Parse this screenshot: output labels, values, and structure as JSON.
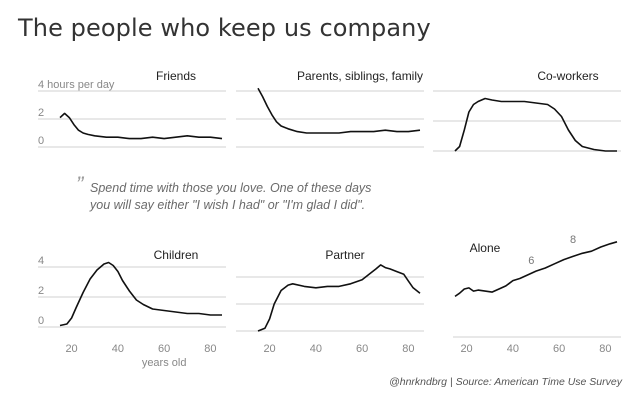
{
  "title": "The people who keep us company",
  "quote": {
    "mark": "”",
    "line1": "Spend time with those you love. One of these days",
    "line2": "you will say either \"I wish I had\" or \"I'm glad I did\"."
  },
  "credit": "@hnrkndbrg | Source: American Time Use Survey",
  "chart_data": [
    {
      "type": "line",
      "title": "Friends",
      "xlim": [
        15,
        85
      ],
      "ylim": [
        0,
        4
      ],
      "yticks": [
        "0",
        "2",
        "4 hours per day"
      ],
      "x": [
        15,
        17,
        19,
        21,
        23,
        25,
        27,
        30,
        35,
        40,
        45,
        50,
        55,
        60,
        65,
        70,
        75,
        80,
        85
      ],
      "values": [
        2.1,
        2.4,
        2.1,
        1.6,
        1.2,
        1.0,
        0.9,
        0.8,
        0.7,
        0.7,
        0.6,
        0.6,
        0.7,
        0.6,
        0.7,
        0.8,
        0.7,
        0.7,
        0.6
      ]
    },
    {
      "type": "line",
      "title": "Parents, siblings, family",
      "xlim": [
        15,
        85
      ],
      "ylim": [
        0,
        4
      ],
      "x": [
        15,
        17,
        19,
        21,
        23,
        25,
        28,
        32,
        36,
        40,
        45,
        50,
        55,
        60,
        65,
        70,
        75,
        80,
        85
      ],
      "values": [
        4.2,
        3.6,
        2.9,
        2.3,
        1.8,
        1.5,
        1.3,
        1.1,
        1.0,
        1.0,
        1.0,
        1.0,
        1.1,
        1.1,
        1.1,
        1.2,
        1.1,
        1.1,
        1.2
      ]
    },
    {
      "type": "line",
      "title": "Co-workers",
      "xlim": [
        15,
        85
      ],
      "ylim": [
        0,
        4
      ],
      "x": [
        15,
        17,
        19,
        21,
        23,
        25,
        28,
        31,
        35,
        40,
        45,
        50,
        55,
        58,
        61,
        64,
        67,
        70,
        75,
        80,
        85
      ],
      "values": [
        0.0,
        0.3,
        1.4,
        2.6,
        3.1,
        3.3,
        3.5,
        3.4,
        3.3,
        3.3,
        3.3,
        3.2,
        3.1,
        2.8,
        2.3,
        1.4,
        0.7,
        0.3,
        0.1,
        0.0,
        0.0
      ]
    },
    {
      "type": "line",
      "title": "Children",
      "xlim": [
        15,
        85
      ],
      "ylim": [
        0,
        4.5
      ],
      "yticks": [
        "0",
        "2",
        "4"
      ],
      "xticks": [
        "20",
        "40",
        "60",
        "80"
      ],
      "xlabel": "years old",
      "x": [
        15,
        18,
        20,
        22,
        25,
        28,
        31,
        34,
        36,
        38,
        40,
        42,
        45,
        48,
        51,
        55,
        60,
        65,
        70,
        75,
        80,
        85
      ],
      "values": [
        0.1,
        0.2,
        0.6,
        1.3,
        2.3,
        3.2,
        3.8,
        4.2,
        4.3,
        4.1,
        3.7,
        3.1,
        2.4,
        1.8,
        1.5,
        1.2,
        1.1,
        1.0,
        0.9,
        0.9,
        0.8,
        0.8
      ]
    },
    {
      "type": "line",
      "title": "Partner",
      "xlim": [
        15,
        85
      ],
      "ylim": [
        0,
        5
      ],
      "xticks": [
        "20",
        "40",
        "60",
        "80"
      ],
      "x": [
        15,
        18,
        20,
        22,
        25,
        28,
        30,
        35,
        40,
        45,
        50,
        55,
        60,
        63,
        66,
        68,
        70,
        72,
        75,
        78,
        80,
        82,
        85
      ],
      "values": [
        0.0,
        0.2,
        0.9,
        2.0,
        3.0,
        3.4,
        3.5,
        3.3,
        3.2,
        3.3,
        3.3,
        3.5,
        3.8,
        4.2,
        4.6,
        4.9,
        4.7,
        4.6,
        4.4,
        4.2,
        3.7,
        3.2,
        2.8
      ]
    },
    {
      "type": "line",
      "title": "Alone",
      "xlim": [
        15,
        85
      ],
      "ylim": [
        0,
        9
      ],
      "xticks": [
        "20",
        "40",
        "60",
        "80"
      ],
      "annotations": [
        {
          "text": "6",
          "x": 48,
          "y": 6
        },
        {
          "text": "8",
          "x": 66,
          "y": 8
        }
      ],
      "x": [
        15,
        17,
        19,
        21,
        23,
        25,
        28,
        31,
        34,
        37,
        40,
        43,
        46,
        50,
        54,
        58,
        62,
        66,
        70,
        74,
        78,
        82,
        85
      ],
      "values": [
        3.3,
        3.6,
        4.0,
        4.1,
        3.8,
        3.9,
        3.8,
        3.7,
        4.0,
        4.3,
        4.8,
        5.0,
        5.3,
        5.7,
        6.0,
        6.4,
        6.8,
        7.1,
        7.4,
        7.6,
        8.0,
        8.3,
        8.5
      ]
    }
  ]
}
